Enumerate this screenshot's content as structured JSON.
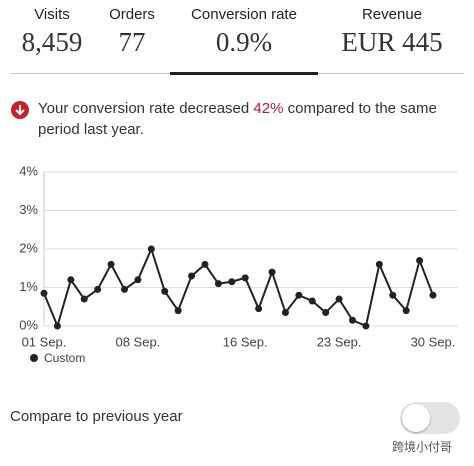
{
  "tabs": [
    {
      "label": "Visits",
      "value": "8,459"
    },
    {
      "label": "Orders",
      "value": "77"
    },
    {
      "label": "Conversion rate",
      "value": "0.9%"
    },
    {
      "label": "Revenue",
      "value": "EUR 445"
    }
  ],
  "alert": {
    "before": "Your conversion rate decreased ",
    "highlight": "42%",
    "after": " compared to the same period last year."
  },
  "chart_data": {
    "type": "line",
    "categories": [
      "01 Sep.",
      null,
      null,
      null,
      null,
      null,
      null,
      "08 Sep.",
      null,
      null,
      null,
      null,
      null,
      null,
      null,
      "16 Sep.",
      null,
      null,
      null,
      null,
      null,
      null,
      "23 Sep.",
      null,
      null,
      null,
      null,
      null,
      null,
      "30 Sep."
    ],
    "series": [
      {
        "name": "Custom",
        "color": "#222222",
        "values": [
          0.85,
          0,
          1.2,
          0.7,
          0.95,
          1.6,
          0.95,
          1.2,
          2.0,
          0.9,
          0.4,
          1.3,
          1.6,
          1.1,
          1.15,
          1.25,
          0.45,
          1.4,
          0.35,
          0.8,
          0.65,
          0.35,
          0.7,
          0.15,
          0,
          1.6,
          0.8,
          0.4,
          1.7,
          0.8
        ]
      }
    ],
    "ylim": [
      0,
      4
    ],
    "yticks": [
      {
        "value": 0,
        "label": "0%"
      },
      {
        "value": 1,
        "label": "1%"
      },
      {
        "value": 2,
        "label": "2%"
      },
      {
        "value": 3,
        "label": "3%"
      },
      {
        "value": 4,
        "label": "4%"
      }
    ],
    "grid": true
  },
  "compare": {
    "label": "Compare to previous year"
  },
  "watermark": "跨境小付哥"
}
